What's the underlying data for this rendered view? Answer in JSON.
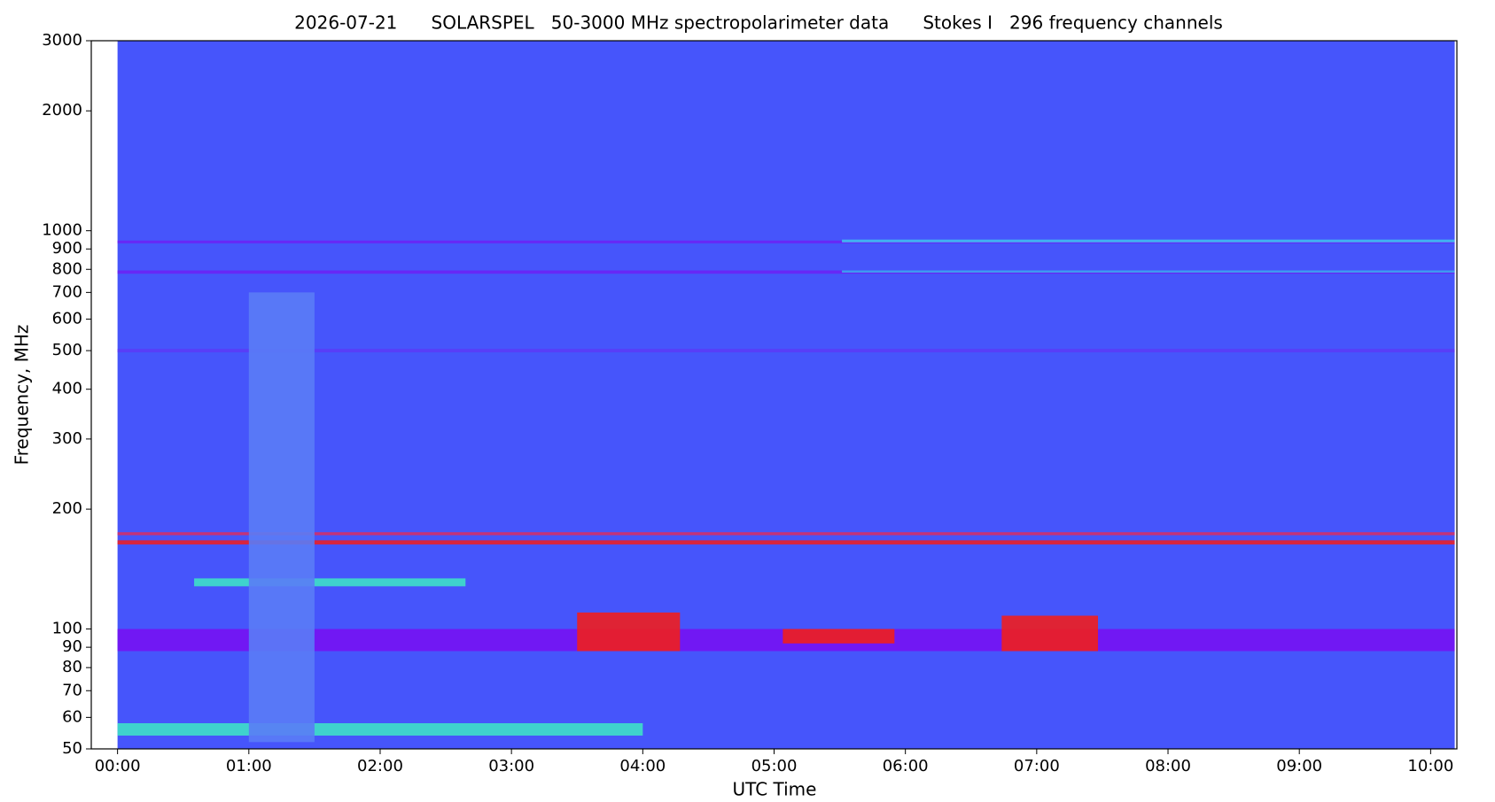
{
  "chart_data": {
    "type": "spectrogram",
    "title": "2026-07-21      SOLARSPEL   50-3000 MHz spectropolarimeter data      Stokes I   296 frequency channels",
    "xlabel": "UTC Time",
    "ylabel": "Frequency, MHz",
    "xlim": [
      -12,
      612
    ],
    "ylim": [
      50,
      3000
    ],
    "log_y": true,
    "xticks": [
      {
        "value": 0,
        "label": "00:00"
      },
      {
        "value": 60,
        "label": "01:00"
      },
      {
        "value": 120,
        "label": "02:00"
      },
      {
        "value": 180,
        "label": "03:00"
      },
      {
        "value": 240,
        "label": "04:00"
      },
      {
        "value": 300,
        "label": "05:00"
      },
      {
        "value": 360,
        "label": "06:00"
      },
      {
        "value": 420,
        "label": "07:00"
      },
      {
        "value": 480,
        "label": "08:00"
      },
      {
        "value": 540,
        "label": "09:00"
      },
      {
        "value": 600,
        "label": "10:00"
      }
    ],
    "yticks": [
      50,
      60,
      70,
      80,
      90,
      100,
      200,
      300,
      400,
      500,
      600,
      700,
      800,
      900,
      1000,
      2000,
      3000
    ],
    "data_time": [
      0,
      611
    ],
    "background_color": "#4655fb",
    "regions": [
      {
        "t": [
          0,
          611
        ],
        "f": [
          88,
          100
        ],
        "color": "#7612f2"
      },
      {
        "t": [
          0,
          611
        ],
        "f": [
          930,
          945
        ],
        "color": "#6a24f4"
      },
      {
        "t": [
          0,
          611
        ],
        "f": [
          780,
          795
        ],
        "color": "#6a24f4"
      },
      {
        "t": [
          0,
          611
        ],
        "f": [
          495,
          505
        ],
        "color": "#5a3cf6"
      },
      {
        "t": [
          0,
          611
        ],
        "f": [
          163,
          167
        ],
        "color": "#e8202a"
      },
      {
        "t": [
          0,
          611
        ],
        "f": [
          172,
          175
        ],
        "color": "#d0306a"
      },
      {
        "t": [
          331,
          611
        ],
        "f": [
          935,
          950
        ],
        "color": "#3fc0f0"
      },
      {
        "t": [
          331,
          611
        ],
        "f": [
          785,
          795
        ],
        "color": "#3aa8f0"
      },
      {
        "t": [
          0,
          240
        ],
        "f": [
          54,
          58
        ],
        "color": "#3ee0c8"
      },
      {
        "t": [
          35,
          159
        ],
        "f": [
          128,
          134
        ],
        "color": "#3ee0c8"
      },
      {
        "t": [
          60,
          90
        ],
        "f": [
          52,
          700
        ],
        "color": "#5a7cf6"
      },
      {
        "t": [
          210,
          257
        ],
        "f": [
          88,
          110
        ],
        "color": "#f01e1e"
      },
      {
        "t": [
          304,
          355
        ],
        "f": [
          92,
          100
        ],
        "color": "#f01e1e"
      },
      {
        "t": [
          404,
          448
        ],
        "f": [
          88,
          108
        ],
        "color": "#f01e1e"
      }
    ]
  }
}
